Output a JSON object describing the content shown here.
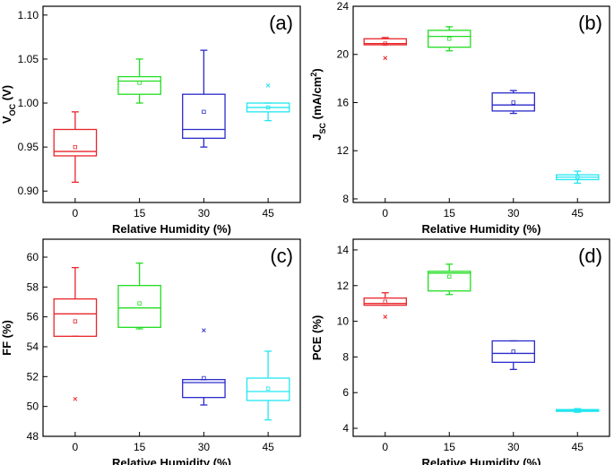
{
  "chart_data": [
    {
      "type": "box",
      "panel_label": "(a)",
      "x_label": "Relative Humidity (%)",
      "y_label": [
        {
          "text": "V"
        },
        {
          "text": "OC",
          "shift": "sub"
        },
        {
          "text": " (V)"
        }
      ],
      "categories": [
        "0",
        "15",
        "30",
        "45"
      ],
      "colors": [
        "#e8252a",
        "#22dd22",
        "#2a2acb",
        "#22e6f0"
      ],
      "boxes": [
        {
          "low": 0.91,
          "q1": 0.94,
          "median": 0.945,
          "q3": 0.97,
          "high": 0.99,
          "mean": 0.95,
          "outliers": []
        },
        {
          "low": 1.0,
          "q1": 1.01,
          "median": 1.025,
          "q3": 1.03,
          "high": 1.05,
          "mean": 1.023,
          "outliers": []
        },
        {
          "low": 0.95,
          "q1": 0.96,
          "median": 0.97,
          "q3": 1.01,
          "high": 1.06,
          "mean": 0.99,
          "outliers": []
        },
        {
          "low": 0.98,
          "q1": 0.99,
          "median": 0.995,
          "q3": 1.0,
          "high": 1.0,
          "mean": 0.995,
          "outliers": [
            1.02
          ]
        }
      ],
      "ylim": [
        0.887,
        1.11
      ],
      "yticks": [
        {
          "value": 0.9,
          "label": "0.90"
        },
        0.95,
        {
          "value": 1.0,
          "label": "1.00"
        },
        1.05,
        {
          "value": 1.1,
          "label": "1.10"
        }
      ]
    },
    {
      "type": "box",
      "panel_label": "(b)",
      "x_label": "Relative Humidity (%)",
      "y_label": [
        {
          "text": "J"
        },
        {
          "text": "SC",
          "shift": "sub"
        },
        {
          "text": " (mA/cm"
        },
        {
          "text": "2",
          "shift": "super"
        },
        {
          "text": ")"
        }
      ],
      "categories": [
        "0",
        "15",
        "30",
        "45"
      ],
      "colors": [
        "#e8252a",
        "#22dd22",
        "#2a2acb",
        "#22e6f0"
      ],
      "boxes": [
        {
          "low": 20.8,
          "q1": 20.8,
          "median": 20.9,
          "q3": 21.3,
          "high": 21.4,
          "mean": 20.9,
          "outliers": [
            19.7
          ]
        },
        {
          "low": 20.3,
          "q1": 20.6,
          "median": 21.5,
          "q3": 22.0,
          "high": 22.3,
          "mean": 21.3,
          "outliers": []
        },
        {
          "low": 15.1,
          "q1": 15.3,
          "median": 15.8,
          "q3": 16.8,
          "high": 17.0,
          "mean": 16.0,
          "outliers": []
        },
        {
          "low": 9.3,
          "q1": 9.6,
          "median": 9.8,
          "q3": 10.0,
          "high": 10.3,
          "mean": 9.8,
          "outliers": []
        }
      ],
      "ylim": [
        7.7,
        24
      ],
      "yticks": [
        8,
        12,
        16,
        20,
        24
      ]
    },
    {
      "type": "box",
      "panel_label": "(c)",
      "x_label": "Relative Humidity (%)",
      "y_label": [
        {
          "text": "FF (%)"
        }
      ],
      "categories": [
        "0",
        "15",
        "30",
        "45"
      ],
      "colors": [
        "#e8252a",
        "#22dd22",
        "#2a2acb",
        "#22e6f0"
      ],
      "boxes": [
        {
          "low": 54.7,
          "q1": 54.7,
          "median": 56.2,
          "q3": 57.2,
          "high": 59.3,
          "mean": 55.7,
          "outliers": [
            50.5
          ]
        },
        {
          "low": 55.2,
          "q1": 55.3,
          "median": 56.6,
          "q3": 58.1,
          "high": 59.6,
          "mean": 56.9,
          "outliers": []
        },
        {
          "low": 50.1,
          "q1": 50.6,
          "median": 51.6,
          "q3": 51.8,
          "high": 51.8,
          "mean": 51.9,
          "outliers": [
            55.1
          ]
        },
        {
          "low": 49.1,
          "q1": 50.4,
          "median": 51.0,
          "q3": 51.9,
          "high": 53.7,
          "mean": 51.2,
          "outliers": []
        }
      ],
      "ylim": [
        48,
        61.2
      ],
      "yticks": [
        48,
        50,
        52,
        54,
        56,
        58,
        60
      ]
    },
    {
      "type": "box",
      "panel_label": "(d)",
      "x_label": "Relative Humidity (%)",
      "y_label": [
        {
          "text": "PCE (%)"
        }
      ],
      "categories": [
        "0",
        "15",
        "30",
        "45"
      ],
      "colors": [
        "#e8252a",
        "#22dd22",
        "#2a2acb",
        "#22e6f0"
      ],
      "boxes": [
        {
          "low": 10.9,
          "q1": 10.9,
          "median": 11.0,
          "q3": 11.3,
          "high": 11.6,
          "mean": 11.1,
          "outliers": [
            10.25
          ]
        },
        {
          "low": 11.5,
          "q1": 11.7,
          "median": 12.7,
          "q3": 12.8,
          "high": 13.2,
          "mean": 12.5,
          "outliers": []
        },
        {
          "low": 7.3,
          "q1": 7.7,
          "median": 8.2,
          "q3": 8.9,
          "high": 8.9,
          "mean": 8.3,
          "outliers": []
        },
        {
          "low": 4.9,
          "q1": 4.95,
          "median": 5.0,
          "q3": 5.05,
          "high": 5.1,
          "mean": 5.0,
          "outliers": []
        }
      ],
      "ylim": [
        3.55,
        14.6
      ],
      "yticks": [
        4,
        6,
        8,
        10,
        12,
        14
      ]
    }
  ]
}
